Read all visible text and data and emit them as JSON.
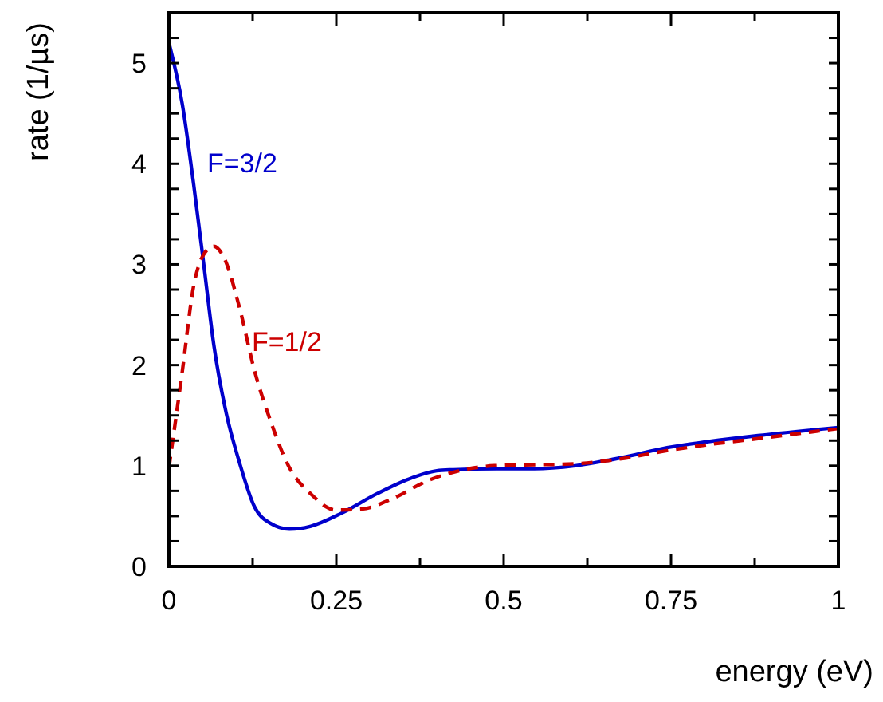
{
  "chart_data": {
    "type": "line",
    "xlabel": "energy (eV)",
    "ylabel": "rate (1/µs)",
    "xlim": [
      0,
      1
    ],
    "ylim": [
      0,
      5.5
    ],
    "xticks": [
      0,
      {
        "value": 0.125,
        "label": null
      },
      0.25,
      {
        "value": 0.375,
        "label": null
      },
      0.5,
      {
        "value": 0.625,
        "label": null
      },
      0.75,
      {
        "value": 0.875,
        "label": null
      },
      1
    ],
    "yticks": [
      0,
      {
        "value": 0.25,
        "label": null
      },
      {
        "value": 0.5,
        "label": null
      },
      {
        "value": 0.75,
        "label": null
      },
      1,
      {
        "value": 1.25,
        "label": null
      },
      {
        "value": 1.5,
        "label": null
      },
      {
        "value": 1.75,
        "label": null
      },
      2,
      {
        "value": 2.25,
        "label": null
      },
      {
        "value": 2.5,
        "label": null
      },
      {
        "value": 2.75,
        "label": null
      },
      3,
      {
        "value": 3.25,
        "label": null
      },
      {
        "value": 3.5,
        "label": null
      },
      {
        "value": 3.75,
        "label": null
      },
      4,
      {
        "value": 4.25,
        "label": null
      },
      {
        "value": 4.5,
        "label": null
      },
      {
        "value": 4.75,
        "label": null
      },
      5,
      {
        "value": 5.25,
        "label": null
      }
    ],
    "grid": false,
    "marker": "none",
    "series": [
      {
        "name": "F=3/2",
        "color": "#0000cc",
        "line_style": "solid",
        "x": [
          0,
          0.02,
          0.037,
          0.052,
          0.067,
          0.086,
          0.105,
          0.128,
          0.151,
          0.18,
          0.212,
          0.258,
          0.31,
          0.363,
          0.4,
          0.425,
          0.49,
          0.546,
          0.607,
          0.676,
          0.744,
          0.806,
          0.88,
          1
        ],
        "values": [
          5.2,
          4.59,
          3.79,
          3.0,
          2.2,
          1.51,
          1.04,
          0.59,
          0.43,
          0.37,
          0.4,
          0.53,
          0.72,
          0.88,
          0.95,
          0.96,
          0.97,
          0.97,
          1.0,
          1.08,
          1.18,
          1.24,
          1.3,
          1.38
        ]
      },
      {
        "name": "F=1/2",
        "color": "#cc0000",
        "line_style": "dashed",
        "x": [
          0,
          0.02,
          0.037,
          0.052,
          0.067,
          0.082,
          0.105,
          0.128,
          0.151,
          0.18,
          0.212,
          0.249,
          0.288,
          0.333,
          0.386,
          0.44,
          0.486,
          0.607,
          0.676,
          0.744,
          0.806,
          0.88,
          1
        ],
        "values": [
          0.98,
          1.94,
          2.79,
          3.1,
          3.18,
          3.07,
          2.58,
          1.94,
          1.46,
          0.98,
          0.72,
          0.56,
          0.57,
          0.67,
          0.85,
          0.96,
          1.0,
          1.02,
          1.07,
          1.15,
          1.21,
          1.27,
          1.37
        ]
      }
    ]
  }
}
